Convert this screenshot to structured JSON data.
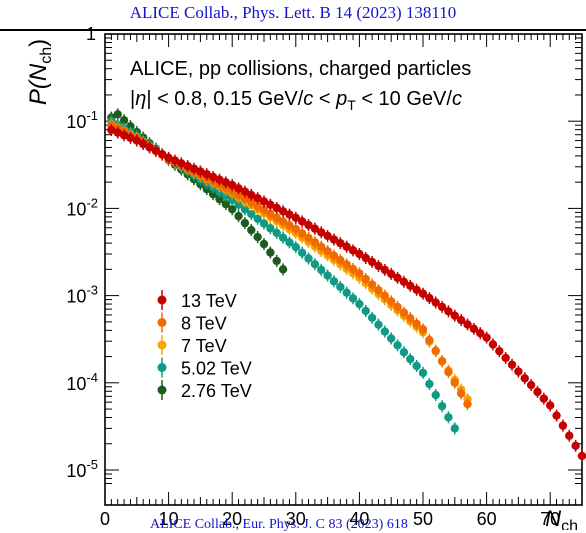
{
  "header": {
    "citation": "ALICE Collab., Phys. Lett. B 14 (2023) 138110"
  },
  "footer": {
    "citation": "ALICE Collab., Eur. Phys. J. C 83 (2023) 618"
  },
  "chart_data": {
    "type": "scatter",
    "xlabel": "N_ch",
    "ylabel": "P(N_ch)",
    "xlim": [
      0,
      75
    ],
    "ylim": [
      7e-06,
      1
    ],
    "yscale": "log",
    "grid": false,
    "legend_position": "bottom-left",
    "annotations": [
      "ALICE, pp collisions, charged particles",
      "|η| < 0.8, 0.15 GeV/c < p_T < 10 GeV/c"
    ],
    "x_ticks": [
      0,
      10,
      20,
      30,
      40,
      50,
      60,
      70
    ],
    "y_ticks": [
      "1",
      "10^-1",
      "10^-2",
      "10^-3",
      "10^-4",
      "10^-5"
    ],
    "series": [
      {
        "name": "13 TeV",
        "color": "#c40000",
        "x": [
          1,
          75
        ],
        "control_points": [
          [
            0,
            0.085
          ],
          [
            5,
            0.06
          ],
          [
            10,
            0.038
          ],
          [
            20,
            0.0185
          ],
          [
            30,
            0.0078
          ],
          [
            40,
            0.003
          ],
          [
            50,
            0.00105
          ],
          [
            60,
            0.00033
          ],
          [
            70,
            5.5e-05
          ],
          [
            75,
            1.45e-05
          ]
        ]
      },
      {
        "name": "8 TeV",
        "color": "#f06a00",
        "x": [
          1,
          57
        ],
        "control_points": [
          [
            1,
            0.09
          ],
          [
            5,
            0.063
          ],
          [
            10,
            0.037
          ],
          [
            20,
            0.0158
          ],
          [
            30,
            0.0058
          ],
          [
            40,
            0.0018
          ],
          [
            50,
            0.00041
          ],
          [
            57,
            5.7e-05
          ]
        ]
      },
      {
        "name": "7 TeV",
        "color": "#f9a400",
        "x": [
          1,
          57
        ],
        "control_points": [
          [
            1,
            0.092
          ],
          [
            5,
            0.064
          ],
          [
            10,
            0.037
          ],
          [
            20,
            0.015
          ],
          [
            30,
            0.0052
          ],
          [
            40,
            0.0016
          ],
          [
            50,
            0.00038
          ],
          [
            57,
            6.5e-05
          ]
        ]
      },
      {
        "name": "5.02 TeV",
        "color": "#0f9a84",
        "x": [
          1,
          55
        ],
        "control_points": [
          [
            1,
            0.1
          ],
          [
            5,
            0.068
          ],
          [
            10,
            0.037
          ],
          [
            20,
            0.0125
          ],
          [
            30,
            0.0036
          ],
          [
            40,
            0.0008
          ],
          [
            50,
            0.00013
          ],
          [
            55,
            3e-05
          ]
        ]
      },
      {
        "name": "2.76 TeV",
        "color": "#1e5c1e",
        "x": [
          1,
          28
        ],
        "control_points": [
          [
            1,
            0.11
          ],
          [
            2,
            0.12
          ],
          [
            5,
            0.075
          ],
          [
            10,
            0.036
          ],
          [
            15,
            0.019
          ],
          [
            20,
            0.0098
          ],
          [
            25,
            0.0039
          ],
          [
            28,
            0.002
          ]
        ]
      }
    ]
  }
}
